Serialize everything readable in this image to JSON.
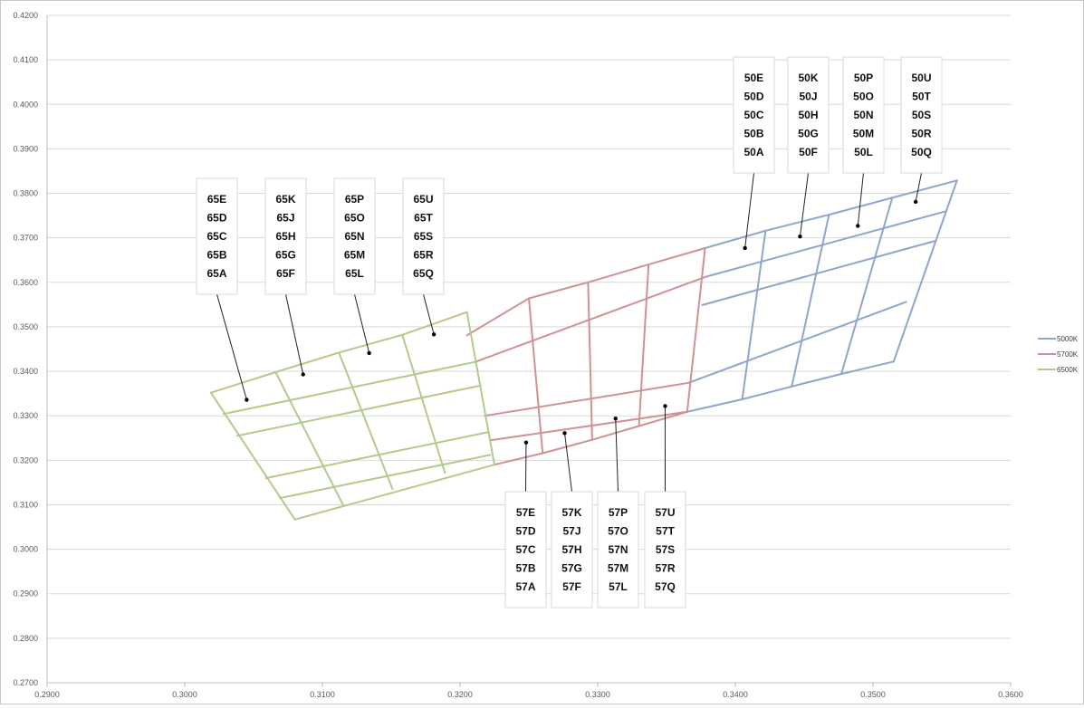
{
  "chart_data": {
    "type": "line",
    "xlim": [
      0.29,
      0.36
    ],
    "ylim": [
      0.27,
      0.42
    ],
    "x_ticks": [
      "0.2900",
      "0.3000",
      "0.3100",
      "0.3200",
      "0.3300",
      "0.3400",
      "0.3500",
      "0.3600"
    ],
    "y_ticks": [
      "0.2700",
      "0.2800",
      "0.2900",
      "0.3000",
      "0.3100",
      "0.3200",
      "0.3300",
      "0.3400",
      "0.3500",
      "0.3600",
      "0.3700",
      "0.3800",
      "0.3900",
      "0.4000",
      "0.4100",
      "0.4200"
    ],
    "grid": "horizontal",
    "legend_position": "right",
    "series": [
      {
        "name": "5000K",
        "color": "#8EA6CC",
        "segments": [
          [
            [
              0.3378,
              0.3677
            ],
            [
              0.3422,
              0.3716
            ],
            [
              0.3468,
              0.3752
            ],
            [
              0.3514,
              0.379
            ],
            [
              0.3561,
              0.3829
            ]
          ],
          [
            [
              0.3378,
              0.3612
            ],
            [
              0.3552,
              0.3759
            ]
          ],
          [
            [
              0.3376,
              0.3549
            ],
            [
              0.3545,
              0.3693
            ]
          ],
          [
            [
              0.3366,
              0.3374
            ],
            [
              0.3524,
              0.3556
            ]
          ],
          [
            [
              0.3365,
              0.3309
            ],
            [
              0.3405,
              0.3337
            ],
            [
              0.3441,
              0.3366
            ],
            [
              0.3477,
              0.3394
            ],
            [
              0.3515,
              0.3422
            ]
          ],
          [
            [
              0.3422,
              0.3716
            ],
            [
              0.3405,
              0.3337
            ]
          ],
          [
            [
              0.3468,
              0.3752
            ],
            [
              0.3441,
              0.3366
            ]
          ],
          [
            [
              0.3514,
              0.379
            ],
            [
              0.3477,
              0.3394
            ]
          ],
          [
            [
              0.3561,
              0.3829
            ],
            [
              0.3515,
              0.3422
            ]
          ]
        ]
      },
      {
        "name": "5700K",
        "color": "#D09195",
        "segments": [
          [
            [
              0.3205,
              0.3481
            ],
            [
              0.325,
              0.3564
            ],
            [
              0.3293,
              0.36
            ],
            [
              0.3337,
              0.364
            ],
            [
              0.3378,
              0.3677
            ]
          ],
          [
            [
              0.3211,
              0.3421
            ],
            [
              0.3378,
              0.3612
            ]
          ],
          [
            [
              0.3218,
              0.33
            ],
            [
              0.3366,
              0.3374
            ]
          ],
          [
            [
              0.3222,
              0.3245
            ],
            [
              0.3365,
              0.3309
            ]
          ],
          [
            [
              0.3225,
              0.319
            ],
            [
              0.326,
              0.3216
            ],
            [
              0.3296,
              0.3246
            ],
            [
              0.333,
              0.3277
            ],
            [
              0.3365,
              0.3309
            ]
          ],
          [
            [
              0.325,
              0.3564
            ],
            [
              0.326,
              0.3216
            ]
          ],
          [
            [
              0.3293,
              0.36
            ],
            [
              0.3296,
              0.3246
            ]
          ],
          [
            [
              0.3337,
              0.364
            ],
            [
              0.333,
              0.3277
            ]
          ],
          [
            [
              0.3378,
              0.3677
            ],
            [
              0.3365,
              0.3309
            ]
          ]
        ]
      },
      {
        "name": "6500K",
        "color": "#B2CA8C",
        "segments": [
          [
            [
              0.3019,
              0.3352
            ],
            [
              0.3066,
              0.3398
            ],
            [
              0.3112,
              0.3442
            ],
            [
              0.3158,
              0.3482
            ],
            [
              0.3205,
              0.3533
            ]
          ],
          [
            [
              0.3028,
              0.3304
            ],
            [
              0.3211,
              0.3421
            ]
          ],
          [
            [
              0.3038,
              0.3255
            ],
            [
              0.3215,
              0.3368
            ]
          ],
          [
            [
              0.3059,
              0.316
            ],
            [
              0.322,
              0.3263
            ]
          ],
          [
            [
              0.3069,
              0.3115
            ],
            [
              0.3222,
              0.3212
            ]
          ],
          [
            [
              0.308,
              0.3067
            ],
            [
              0.3225,
              0.319
            ]
          ],
          [
            [
              0.3019,
              0.3352
            ],
            [
              0.308,
              0.3067
            ]
          ],
          [
            [
              0.3066,
              0.3398
            ],
            [
              0.3115,
              0.31
            ]
          ],
          [
            [
              0.3112,
              0.3442
            ],
            [
              0.3151,
              0.3135
            ]
          ],
          [
            [
              0.3158,
              0.3482
            ],
            [
              0.3189,
              0.3172
            ]
          ],
          [
            [
              0.3205,
              0.3533
            ],
            [
              0.3225,
              0.319
            ]
          ]
        ]
      }
    ],
    "annotations": [
      {
        "labels": [
          "65E",
          "65D",
          "65C",
          "65B",
          "65A"
        ],
        "point": [
          0.3045,
          0.3336
        ]
      },
      {
        "labels": [
          "65K",
          "65J",
          "65H",
          "65G",
          "65F"
        ],
        "point": [
          0.3086,
          0.3393
        ]
      },
      {
        "labels": [
          "65P",
          "65O",
          "65N",
          "65M",
          "65L"
        ],
        "point": [
          0.3134,
          0.3441
        ]
      },
      {
        "labels": [
          "65U",
          "65T",
          "65S",
          "65R",
          "65Q"
        ],
        "point": [
          0.3181,
          0.3483
        ]
      },
      {
        "labels": [
          "57E",
          "57D",
          "57C",
          "57B",
          "57A"
        ],
        "point": [
          0.3248,
          0.324
        ]
      },
      {
        "labels": [
          "57K",
          "57J",
          "57H",
          "57G",
          "57F"
        ],
        "point": [
          0.3276,
          0.3261
        ]
      },
      {
        "labels": [
          "57P",
          "57O",
          "57N",
          "57M",
          "57L"
        ],
        "point": [
          0.3313,
          0.3294
        ]
      },
      {
        "labels": [
          "57U",
          "57T",
          "57S",
          "57R",
          "57Q"
        ],
        "point": [
          0.3349,
          0.3322
        ]
      },
      {
        "labels": [
          "50E",
          "50D",
          "50C",
          "50B",
          "50A"
        ],
        "point": [
          0.3407,
          0.3677
        ]
      },
      {
        "labels": [
          "50K",
          "50J",
          "50H",
          "50G",
          "50F"
        ],
        "point": [
          0.3447,
          0.3703
        ]
      },
      {
        "labels": [
          "50P",
          "50O",
          "50N",
          "50M",
          "50L"
        ],
        "point": [
          0.3489,
          0.3727
        ]
      },
      {
        "labels": [
          "50U",
          "50T",
          "50S",
          "50R",
          "50Q"
        ],
        "point": [
          0.3531,
          0.3781
        ]
      }
    ]
  }
}
